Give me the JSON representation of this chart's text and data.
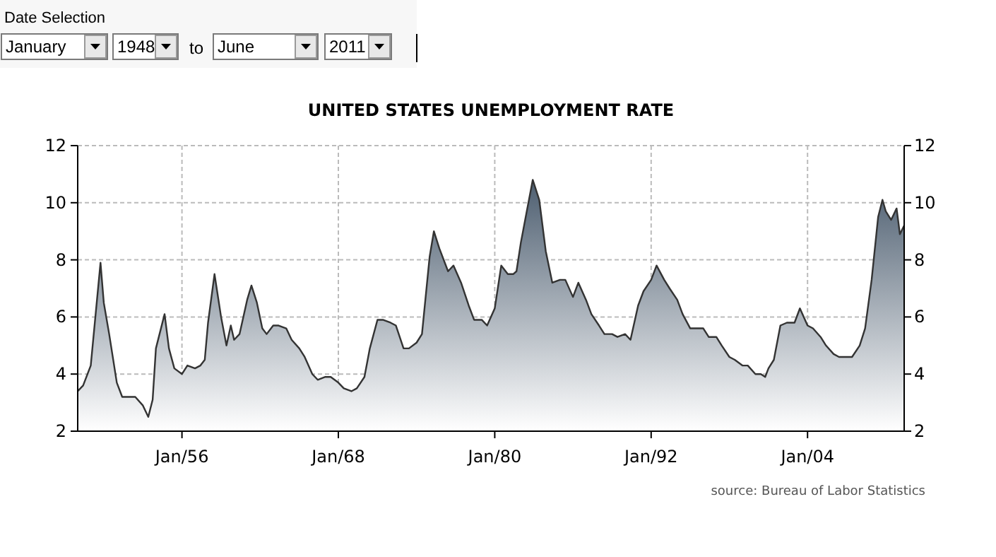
{
  "chart_data": {
    "type": "area",
    "title": "UNITED STATES UNEMPLOYMENT RATE",
    "annotations": [
      "Date Selection",
      "January",
      "1948",
      "to",
      "June",
      "2011",
      "source: Bureau of Labor Statistics"
    ],
    "x": [
      "1948-01",
      "1948-06",
      "1949-01",
      "1949-10",
      "1950-01",
      "1950-06",
      "1951-01",
      "1951-06",
      "1952-01",
      "1952-06",
      "1953-01",
      "1953-06",
      "1953-10",
      "1954-01",
      "1954-09",
      "1955-01",
      "1955-06",
      "1956-01",
      "1956-06",
      "1957-01",
      "1957-06",
      "1957-10",
      "1958-01",
      "1958-07",
      "1959-01",
      "1959-06",
      "1959-10",
      "1960-01",
      "1960-06",
      "1961-01",
      "1961-05",
      "1961-10",
      "1962-03",
      "1962-07",
      "1963-01",
      "1963-06",
      "1964-01",
      "1964-06",
      "1965-01",
      "1965-06",
      "1966-01",
      "1966-06",
      "1967-01",
      "1967-06",
      "1968-01",
      "1968-06",
      "1969-01",
      "1969-06",
      "1970-01",
      "1970-06",
      "1971-01",
      "1971-06",
      "1972-01",
      "1972-06",
      "1973-01",
      "1973-06",
      "1974-01",
      "1974-06",
      "1975-01",
      "1975-05",
      "1975-10",
      "1976-06",
      "1976-11",
      "1977-06",
      "1978-01",
      "1978-06",
      "1979-01",
      "1979-06",
      "1980-01",
      "1980-07",
      "1981-01",
      "1981-06",
      "1981-09",
      "1982-01",
      "1982-06",
      "1982-12",
      "1983-06",
      "1983-12",
      "1984-06",
      "1985-01",
      "1985-06",
      "1986-01",
      "1986-06",
      "1987-01",
      "1987-06",
      "1988-01",
      "1988-06",
      "1989-01",
      "1989-06",
      "1990-01",
      "1990-06",
      "1991-01",
      "1991-06",
      "1992-01",
      "1992-06",
      "1993-01",
      "1993-06",
      "1994-01",
      "1994-06",
      "1995-01",
      "1995-06",
      "1996-01",
      "1996-06",
      "1997-01",
      "1997-06",
      "1998-01",
      "1998-06",
      "1999-01",
      "1999-06",
      "2000-01",
      "2000-06",
      "2000-10",
      "2001-01",
      "2001-06",
      "2001-12",
      "2002-06",
      "2003-01",
      "2003-06",
      "2004-01",
      "2004-06",
      "2005-01",
      "2005-06",
      "2006-01",
      "2006-06",
      "2007-01",
      "2007-06",
      "2008-01",
      "2008-06",
      "2008-12",
      "2009-06",
      "2009-10",
      "2010-01",
      "2010-06",
      "2010-11",
      "2011-02",
      "2011-06"
    ],
    "series": [
      {
        "color": "#333333",
        "values": [
          3.4,
          3.6,
          4.3,
          7.9,
          6.5,
          5.4,
          3.7,
          3.2,
          3.2,
          3.2,
          2.9,
          2.5,
          3.1,
          4.9,
          6.1,
          4.9,
          4.2,
          4.0,
          4.3,
          4.2,
          4.3,
          4.5,
          5.8,
          7.5,
          6.0,
          5.0,
          5.7,
          5.2,
          5.4,
          6.6,
          7.1,
          6.5,
          5.6,
          5.4,
          5.7,
          5.7,
          5.6,
          5.2,
          4.9,
          4.6,
          4.0,
          3.8,
          3.9,
          3.9,
          3.7,
          3.5,
          3.4,
          3.5,
          3.9,
          4.9,
          5.9,
          5.9,
          5.8,
          5.7,
          4.9,
          4.9,
          5.1,
          5.4,
          8.1,
          9.0,
          8.4,
          7.6,
          7.8,
          7.2,
          6.4,
          5.9,
          5.9,
          5.7,
          6.3,
          7.8,
          7.5,
          7.5,
          7.6,
          8.6,
          9.6,
          10.8,
          10.1,
          8.3,
          7.2,
          7.3,
          7.3,
          6.7,
          7.2,
          6.6,
          6.1,
          5.7,
          5.4,
          5.4,
          5.3,
          5.4,
          5.2,
          6.4,
          6.9,
          7.3,
          7.8,
          7.3,
          7.0,
          6.6,
          6.1,
          5.6,
          5.6,
          5.6,
          5.3,
          5.3,
          5.0,
          4.6,
          4.5,
          4.3,
          4.3,
          4.0,
          4.0,
          3.9,
          4.2,
          4.5,
          5.7,
          5.8,
          5.8,
          6.3,
          5.7,
          5.6,
          5.3,
          5.0,
          4.7,
          4.6,
          4.6,
          4.6,
          5.0,
          5.6,
          7.3,
          9.5,
          10.1,
          9.7,
          9.4,
          9.8,
          8.9,
          9.2
        ]
      }
    ],
    "xlim": [
      "1948-01",
      "2011-06"
    ],
    "xticks": [
      {
        "value": "1956-01",
        "label": "Jan/56"
      },
      {
        "value": "1968-01",
        "label": "Jan/68"
      },
      {
        "value": "1980-01",
        "label": "Jan/80"
      },
      {
        "value": "1992-01",
        "label": "Jan/92"
      },
      {
        "value": "2004-01",
        "label": "Jan/04"
      }
    ],
    "ylim": [
      2,
      12
    ],
    "yticks": [
      2,
      4,
      6,
      8,
      10,
      12
    ],
    "y2lim": [
      2,
      12
    ],
    "y2ticks": [
      2,
      4,
      6,
      8,
      10,
      12
    ],
    "grid": true
  }
}
